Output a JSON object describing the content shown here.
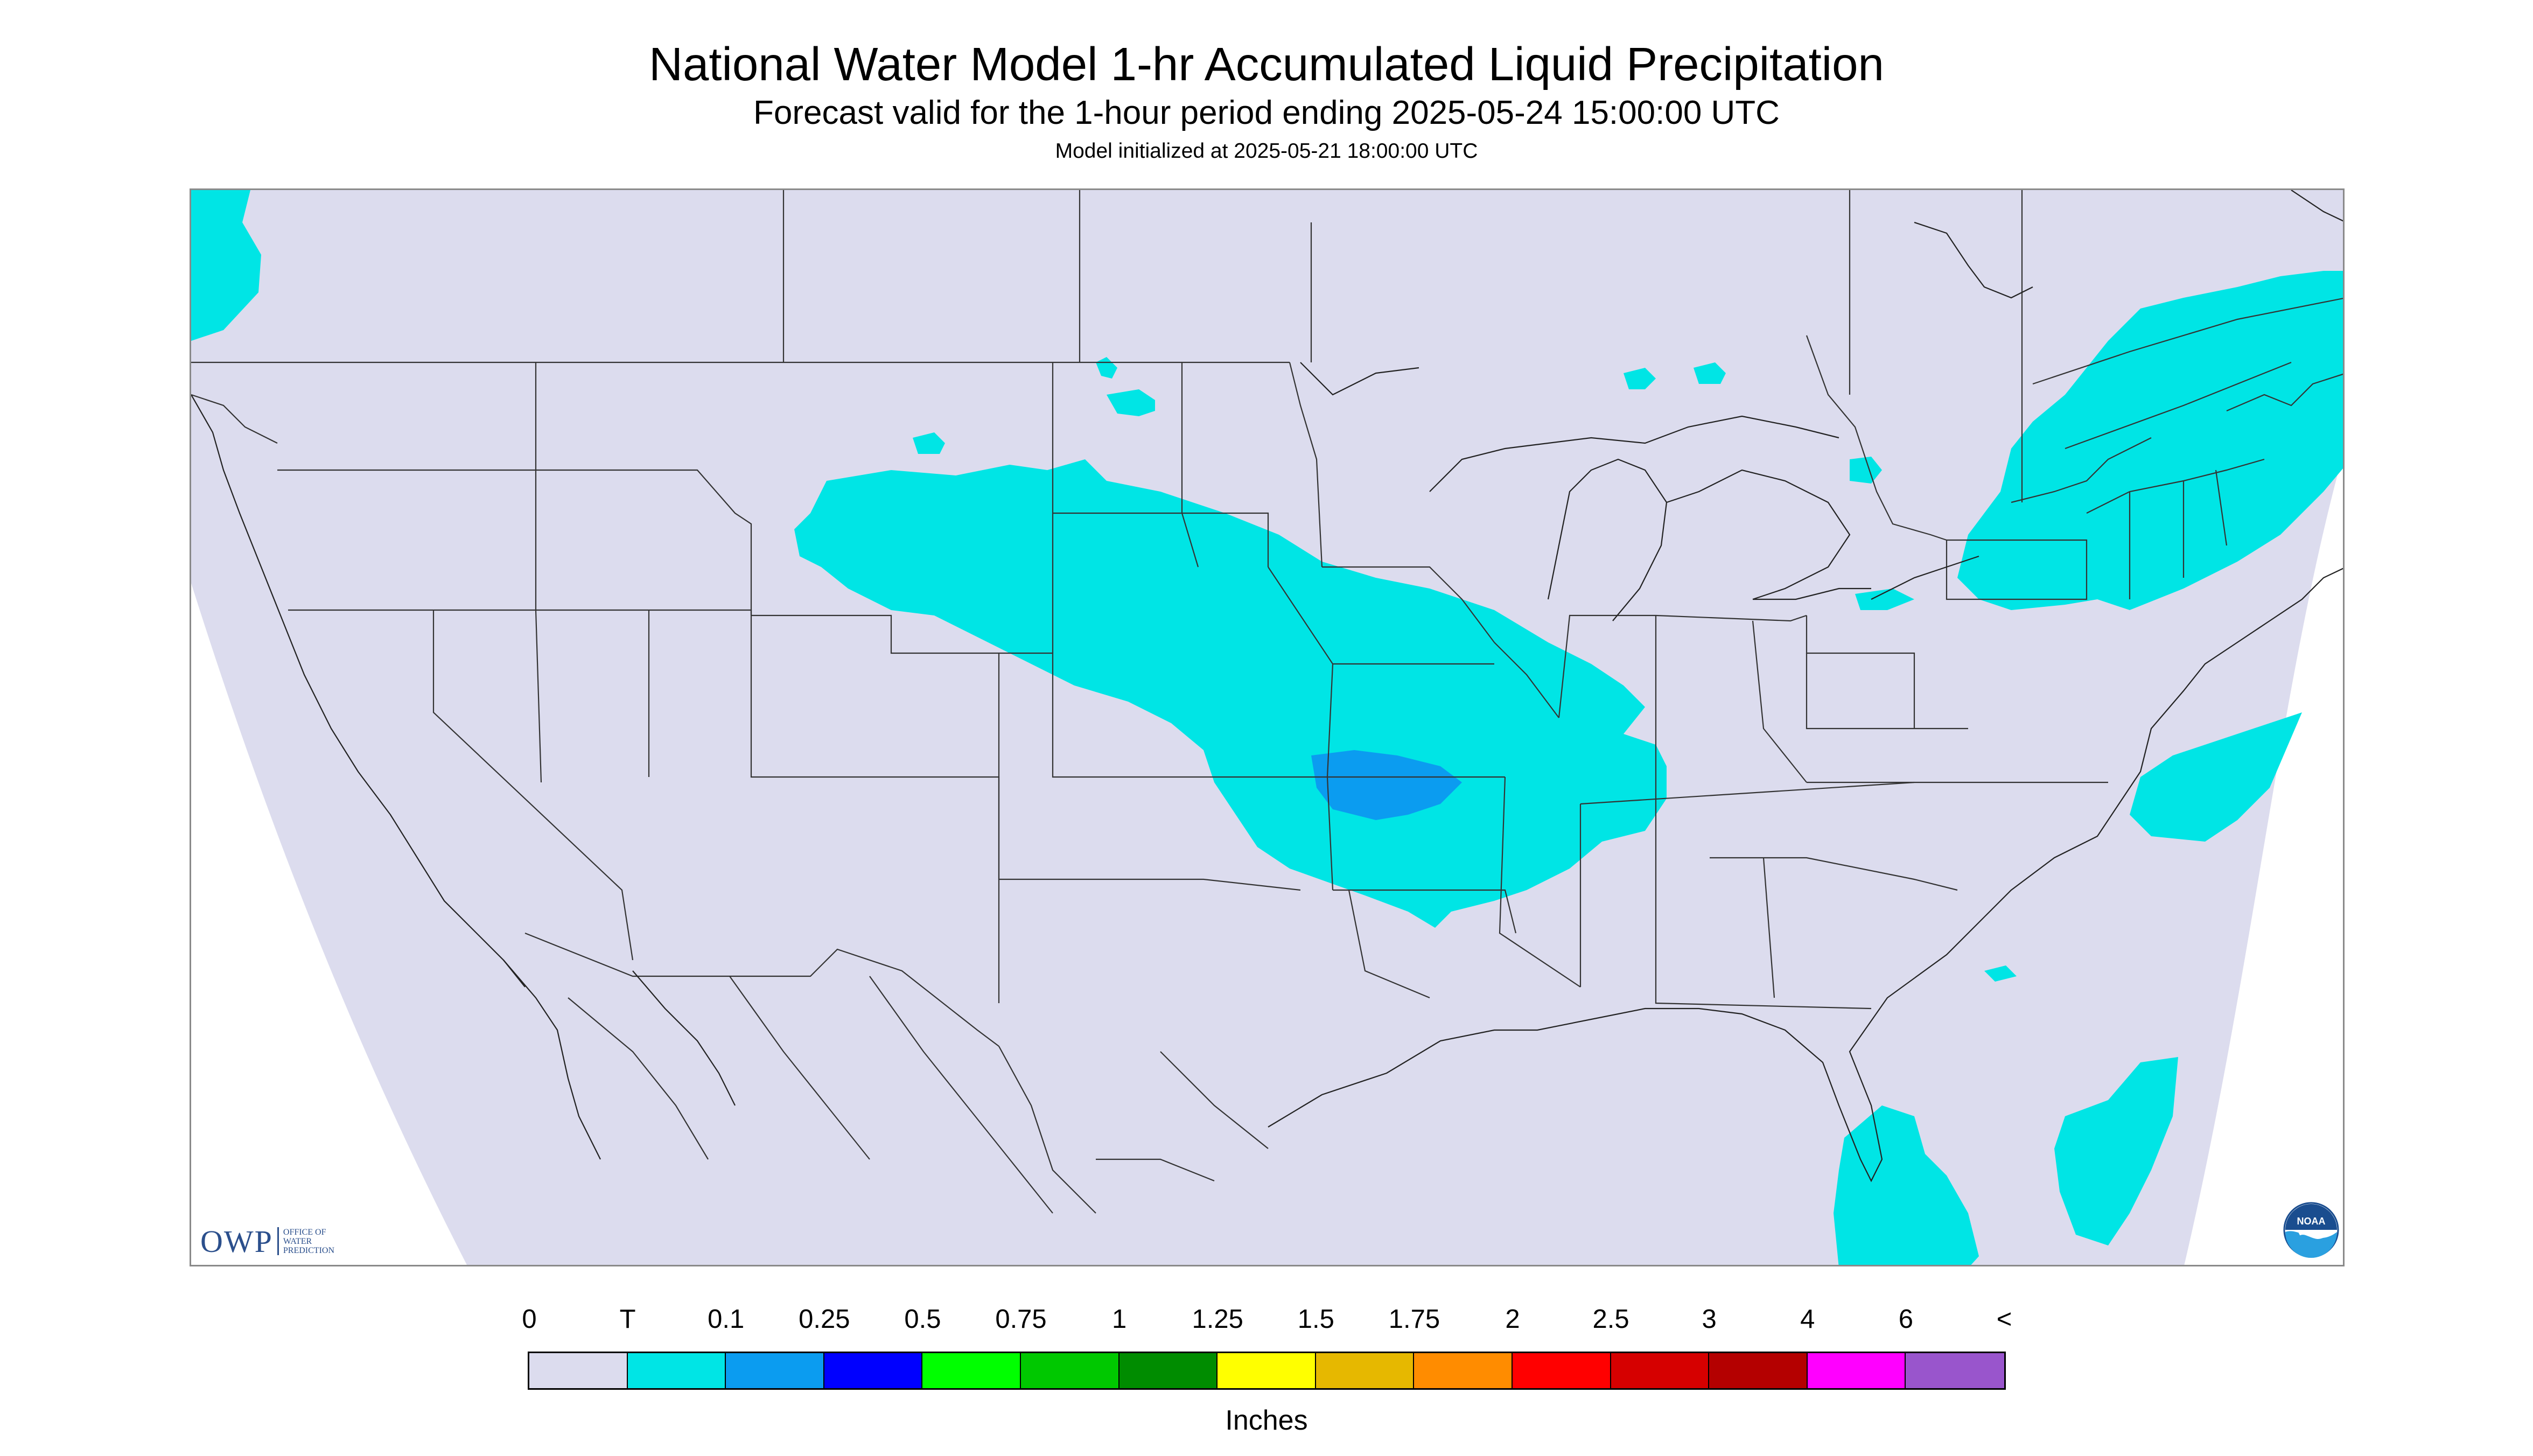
{
  "header": {
    "title": "National Water Model 1-hr Accumulated Liquid Precipitation",
    "subtitle": "Forecast valid for the 1-hour period ending 2025-05-24 15:00:00 UTC",
    "init": "Model initialized at 2025-05-21 18:00:00 UTC"
  },
  "map": {
    "background_color": "#dcdcee",
    "outside_domain_color": "#ffffff",
    "boundary_color": "#222222",
    "precip_colors": {
      "trace": "#00e5e5",
      "tenth": "#0b9cf0"
    }
  },
  "logos": {
    "owp_letters": "OWP",
    "owp_words": "Office of Water Prediction",
    "noaa_text": "NOAA"
  },
  "legend": {
    "labels": [
      "0",
      "T",
      "0.1",
      "0.25",
      "0.5",
      "0.75",
      "1",
      "1.25",
      "1.5",
      "1.75",
      "2",
      "2.5",
      "3",
      "4",
      "6",
      "<"
    ],
    "colors": [
      "#dcdcee",
      "#00e5e5",
      "#0b9cf0",
      "#0000ff",
      "#00ff00",
      "#00c800",
      "#008c00",
      "#ffff00",
      "#e6b800",
      "#ff8c00",
      "#ff0000",
      "#d60000",
      "#b40000",
      "#ff00ff",
      "#9955cc"
    ],
    "unit": "Inches"
  }
}
